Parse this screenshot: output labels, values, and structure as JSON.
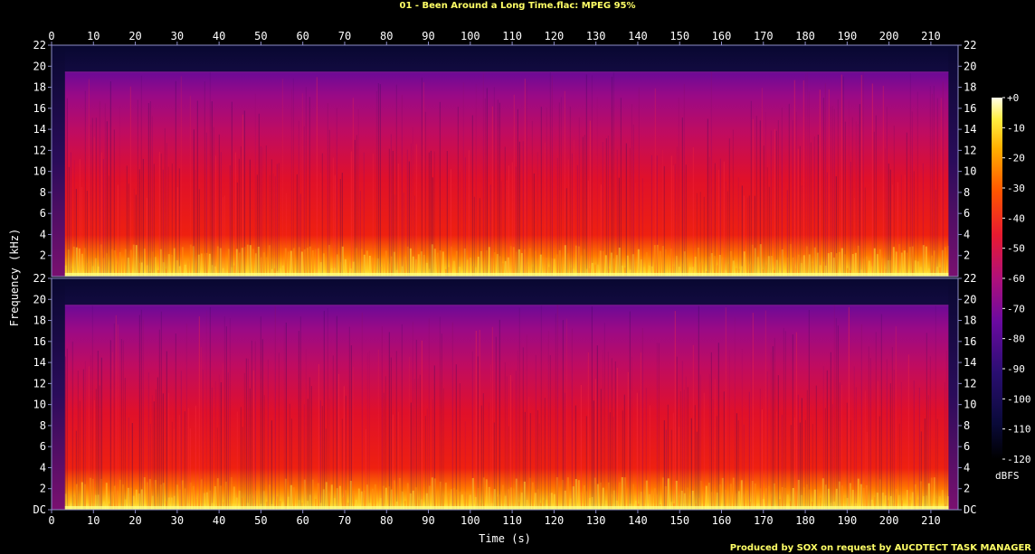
{
  "page": {
    "title": "01 - Been Around a Long Time.flac: MPEG 95%",
    "credit": "Produced by SOX on request by AUCDTECT TASK MANAGER",
    "colors": {
      "background": "#000000",
      "title": "#ffff66",
      "text": "#ffffff",
      "axis": "#8e8ec8",
      "credit": "#ffff66"
    }
  },
  "chart_data": {
    "type": "heatmap",
    "xlabel": "Time (s)",
    "ylabel": "Frequency (kHz)",
    "x_ticks": [
      "0",
      "10",
      "20",
      "30",
      "40",
      "50",
      "60",
      "70",
      "80",
      "90",
      "100",
      "110",
      "120",
      "130",
      "140",
      "150",
      "160",
      "170",
      "180",
      "190",
      "200",
      "210"
    ],
    "y_ticks_top": [
      "2",
      "4",
      "6",
      "8",
      "10",
      "12",
      "14",
      "16",
      "18",
      "20",
      "22"
    ],
    "y_ticks_bottom": [
      "DC",
      "2",
      "4",
      "6",
      "8",
      "10",
      "12",
      "14",
      "16",
      "18",
      "20",
      "22"
    ],
    "xlim": [
      0,
      216.5
    ],
    "ylim": [
      0,
      22
    ],
    "channels": [
      "left",
      "right"
    ],
    "colorbar": {
      "unit": "dBFS",
      "ticks": [
        "+0",
        "-10",
        "-20",
        "-30",
        "-40",
        "-50",
        "-60",
        "-70",
        "-80",
        "-90",
        "-100",
        "-110",
        "-120"
      ],
      "range": [
        -120,
        0
      ]
    },
    "annotations": {
      "audio_start_s": 3.2,
      "audio_end_s": 214.2,
      "lowpass_cutoff_khz": 19.5
    }
  }
}
